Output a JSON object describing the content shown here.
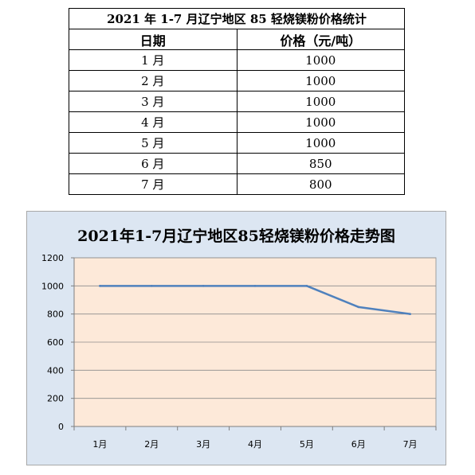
{
  "table": {
    "title": "2021 年 1-7 月辽宁地区 85 轻烧镁粉价格统计",
    "headers": [
      "日期",
      "价格（元/吨）"
    ],
    "rows": [
      {
        "date": "1 月",
        "price": "1000"
      },
      {
        "date": "2 月",
        "price": "1000"
      },
      {
        "date": "3 月",
        "price": "1000"
      },
      {
        "date": "4 月",
        "price": "1000"
      },
      {
        "date": "5 月",
        "price": "1000"
      },
      {
        "date": "6 月",
        "price": "850"
      },
      {
        "date": "7 月",
        "price": "800"
      }
    ]
  },
  "chart_data": {
    "type": "line",
    "title": "2021年1-7月辽宁地区85轻烧镁粉价格走势图",
    "categories": [
      "1月",
      "2月",
      "3月",
      "4月",
      "5月",
      "6月",
      "7月"
    ],
    "series": [
      {
        "values": [
          1000,
          1000,
          1000,
          1000,
          1000,
          850,
          800
        ],
        "color": "#4f81bd"
      }
    ],
    "ylim": [
      0,
      1200
    ],
    "yticks": [
      0,
      200,
      400,
      600,
      800,
      1000,
      1200
    ],
    "grid": true,
    "plot_background": "#fde9d9",
    "chart_background": "#dce6f2",
    "legend": "none"
  }
}
